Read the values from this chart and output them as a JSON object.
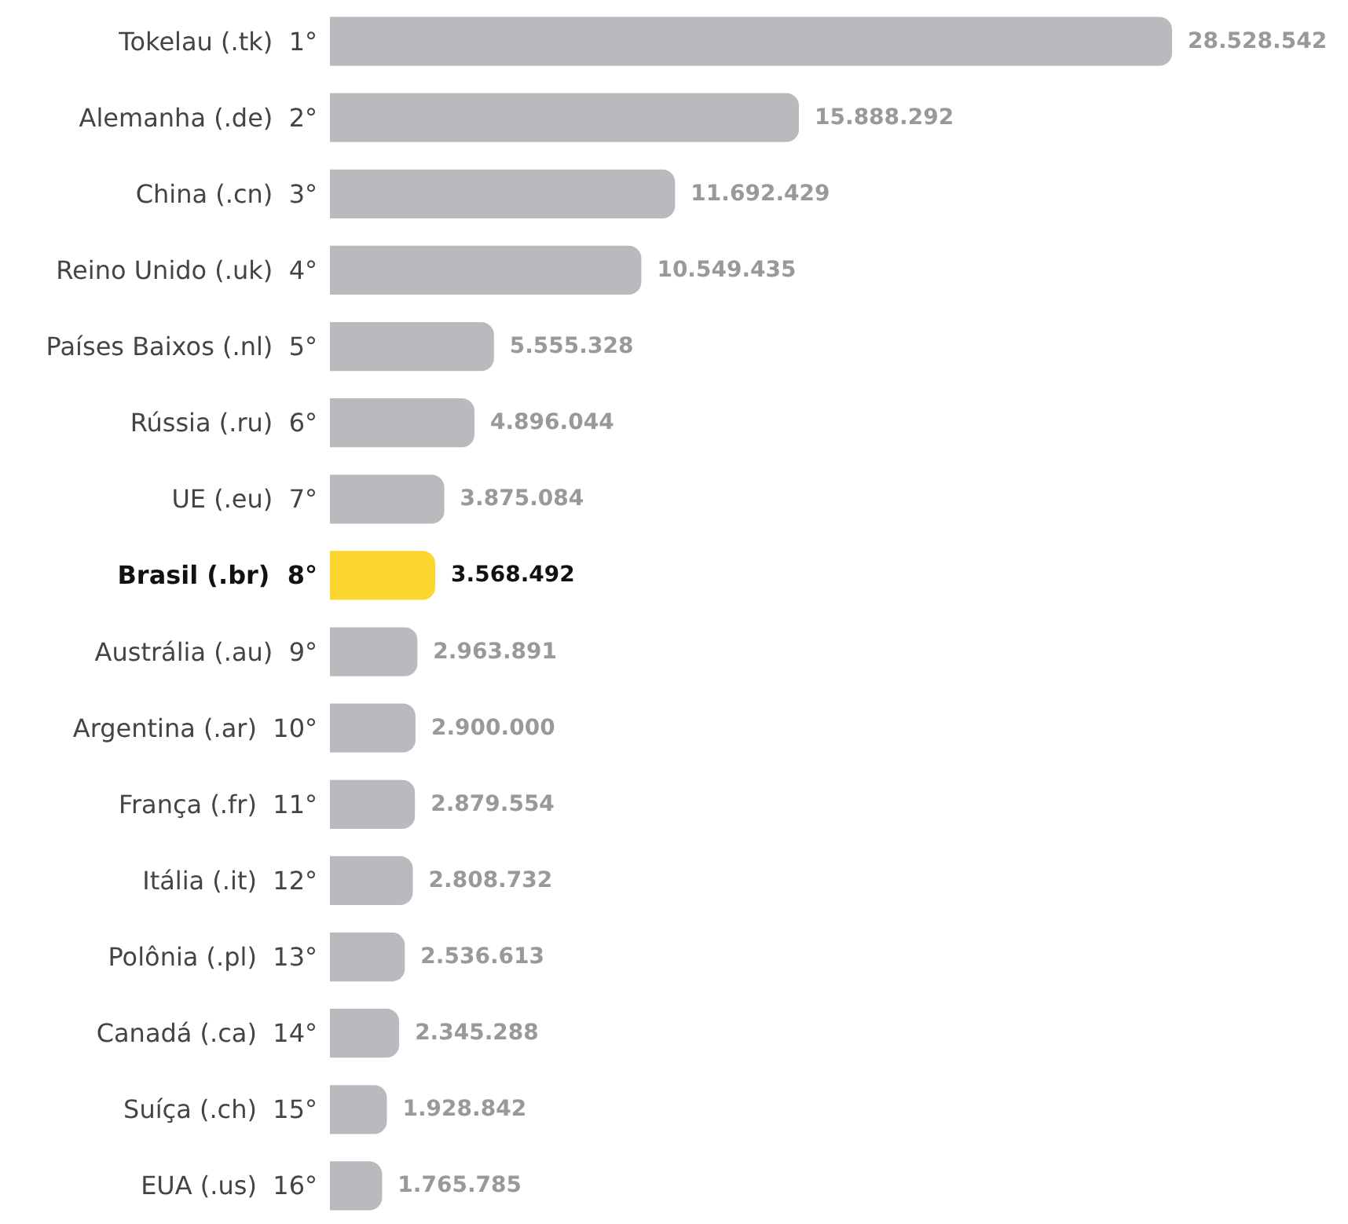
{
  "chart_data": {
    "type": "bar",
    "orientation": "horizontal",
    "categories": [
      "Tokelau (.tk)  1°",
      "Alemanha (.de)  2°",
      "China (.cn)  3°",
      "Reino Unido (.uk)  4°",
      "Países Baixos (.nl)  5°",
      "Rússia (.ru)  6°",
      "UE (.eu)  7°",
      "Brasil (.br)  8°",
      "Austrália (.au)  9°",
      "Argentina (.ar)  10°",
      "França (.fr)  11°",
      "Itália (.it)  12°",
      "Polônia (.pl)  13°",
      "Canadá (.ca)  14°",
      "Suíça (.ch)  15°",
      "EUA (.us)  16°"
    ],
    "values": [
      28528542,
      15888292,
      11692429,
      10549435,
      5555328,
      4896044,
      3875084,
      3568492,
      2963891,
      2900000,
      2879554,
      2808732,
      2536613,
      2345288,
      1928842,
      1765785
    ],
    "value_labels": [
      "28.528.542",
      "15.888.292",
      "11.692.429",
      "10.549.435",
      "5.555.328",
      "4.896.044",
      "3.875.084",
      "3.568.492",
      "2.963.891",
      "2.900.000",
      "2.879.554",
      "2.808.732",
      "2.536.613",
      "2.345.288",
      "1.928.842",
      "1.765.785"
    ],
    "colors": [
      "#b9babe",
      "#b9babe",
      "#b9babe",
      "#b9babe",
      "#b9babe",
      "#b9babe",
      "#b9babe",
      "#fcd62e",
      "#b9babe",
      "#b9babe",
      "#b9babe",
      "#b9babe",
      "#b9babe",
      "#b9babe",
      "#b9babe",
      "#b9babe"
    ]
  }
}
